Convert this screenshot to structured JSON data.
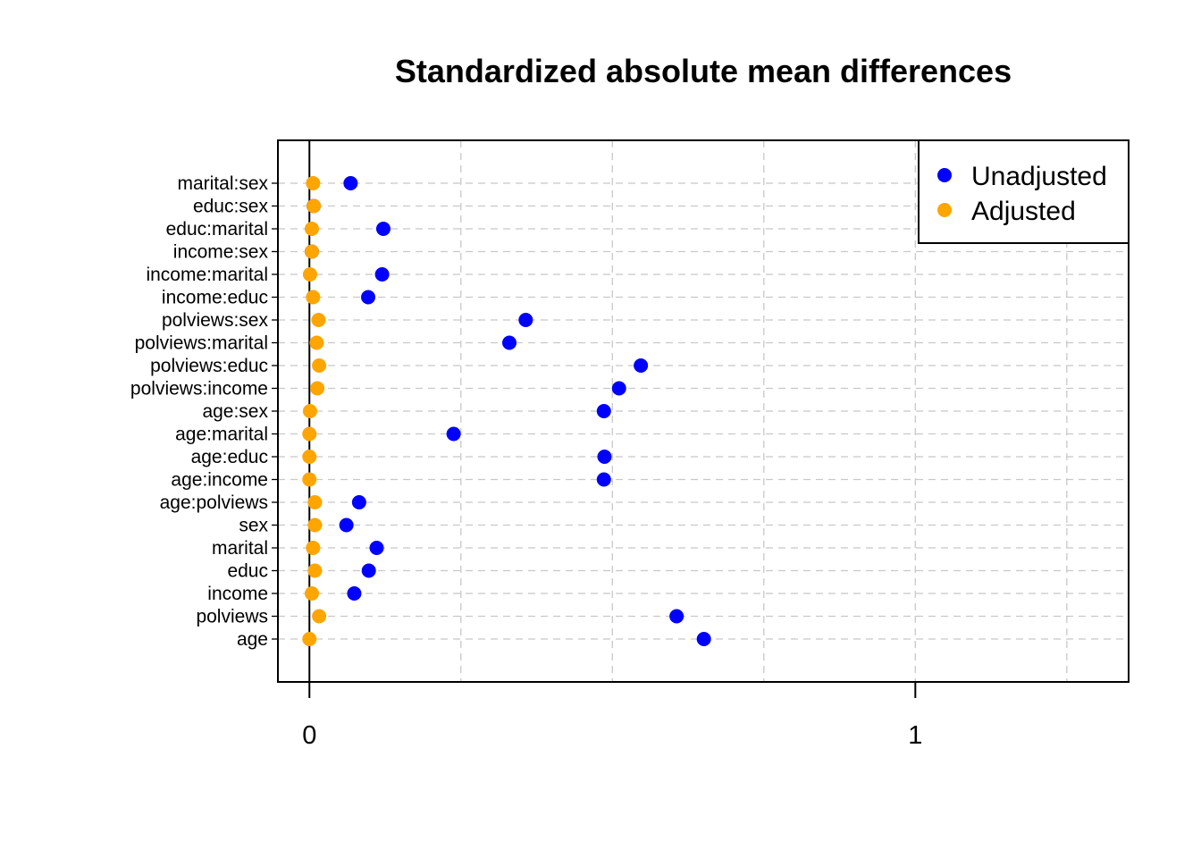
{
  "chart_data": {
    "type": "scatter",
    "title": "Standardized absolute mean differences",
    "xlabel": "",
    "ylabel": "",
    "xlim": [
      0,
      1.3
    ],
    "x_ticks": [
      0,
      1
    ],
    "x_tick_labels": [
      "0",
      "1"
    ],
    "grid": true,
    "legend_position": "top-right",
    "categories": [
      "marital:sex",
      "educ:sex",
      "educ:marital",
      "income:sex",
      "income:marital",
      "income:educ",
      "polviews:sex",
      "polviews:marital",
      "polviews:educ",
      "polviews:income",
      "age:sex",
      "age:marital",
      "age:educ",
      "age:income",
      "age:polviews",
      "sex",
      "marital",
      "educ",
      "income",
      "polviews",
      "age"
    ],
    "series": [
      {
        "name": "Unadjusted",
        "color": "#0000FF",
        "values": [
          0.068,
          0.007,
          0.122,
          0.004,
          0.12,
          0.097,
          0.357,
          0.33,
          0.547,
          0.511,
          0.486,
          0.238,
          0.487,
          0.486,
          0.082,
          0.061,
          0.111,
          0.098,
          0.074,
          0.606,
          0.651
        ]
      },
      {
        "name": "Adjusted",
        "color": "#FFA500",
        "values": [
          0.006,
          0.007,
          0.004,
          0.004,
          0.001,
          0.006,
          0.015,
          0.012,
          0.016,
          0.013,
          0.001,
          0.0,
          0.0,
          0.0,
          0.009,
          0.009,
          0.006,
          0.009,
          0.004,
          0.016,
          0.0
        ]
      }
    ]
  }
}
